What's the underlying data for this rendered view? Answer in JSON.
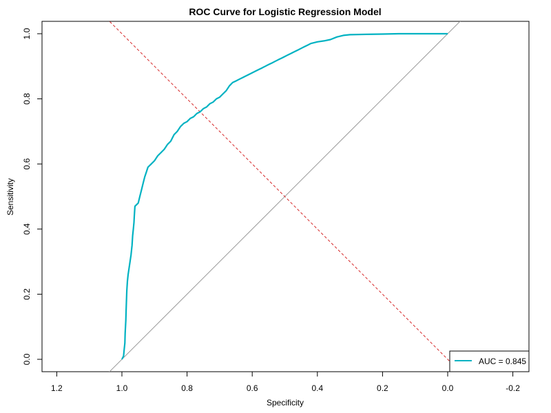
{
  "chart_data": {
    "type": "line",
    "title": "ROC Curve for Logistic Regression Model",
    "xlabel": "Specificity",
    "ylabel": "Sensitivity",
    "x_reversed": true,
    "xlim": [
      1.2,
      -0.2
    ],
    "ylim": [
      0.0,
      1.0
    ],
    "x_ticks": [
      1.2,
      1.0,
      0.8,
      0.6,
      0.4,
      0.2,
      0.0,
      -0.2
    ],
    "x_tick_labels": [
      "1.2",
      "1.0",
      "0.8",
      "0.6",
      "0.4",
      "0.2",
      "0.0",
      "-0.2"
    ],
    "y_ticks": [
      0.0,
      0.2,
      0.4,
      0.6,
      0.8,
      1.0
    ],
    "y_tick_labels": [
      "0.0",
      "0.2",
      "0.4",
      "0.6",
      "0.8",
      "1.0"
    ],
    "grid": false,
    "legend_position": "bottom-right",
    "series": [
      {
        "name": "AUC = 0.845",
        "color": "#00b2c2",
        "x": [
          1.0,
          0.995,
          0.993,
          0.991,
          0.99,
          0.988,
          0.987,
          0.986,
          0.985,
          0.983,
          0.981,
          0.978,
          0.975,
          0.972,
          0.969,
          0.967,
          0.965,
          0.963,
          0.962,
          0.96,
          0.955,
          0.95,
          0.945,
          0.94,
          0.935,
          0.93,
          0.925,
          0.92,
          0.91,
          0.9,
          0.89,
          0.88,
          0.87,
          0.86,
          0.85,
          0.84,
          0.83,
          0.82,
          0.81,
          0.8,
          0.79,
          0.78,
          0.77,
          0.76,
          0.75,
          0.74,
          0.73,
          0.72,
          0.71,
          0.7,
          0.69,
          0.68,
          0.67,
          0.66,
          0.65,
          0.64,
          0.63,
          0.62,
          0.61,
          0.6,
          0.59,
          0.58,
          0.57,
          0.56,
          0.55,
          0.54,
          0.53,
          0.52,
          0.51,
          0.5,
          0.49,
          0.48,
          0.47,
          0.46,
          0.45,
          0.44,
          0.43,
          0.42,
          0.4,
          0.38,
          0.36,
          0.34,
          0.32,
          0.3,
          0.25,
          0.2,
          0.15,
          0.1,
          0.05,
          0.0
        ],
        "y": [
          0.0,
          0.01,
          0.03,
          0.05,
          0.08,
          0.12,
          0.15,
          0.18,
          0.21,
          0.24,
          0.26,
          0.28,
          0.3,
          0.32,
          0.35,
          0.38,
          0.4,
          0.42,
          0.44,
          0.47,
          0.475,
          0.48,
          0.5,
          0.52,
          0.54,
          0.56,
          0.575,
          0.59,
          0.6,
          0.61,
          0.625,
          0.635,
          0.645,
          0.66,
          0.67,
          0.69,
          0.7,
          0.715,
          0.725,
          0.73,
          0.74,
          0.745,
          0.755,
          0.76,
          0.77,
          0.775,
          0.785,
          0.79,
          0.8,
          0.805,
          0.815,
          0.825,
          0.84,
          0.85,
          0.855,
          0.86,
          0.865,
          0.87,
          0.875,
          0.88,
          0.885,
          0.89,
          0.895,
          0.9,
          0.905,
          0.91,
          0.915,
          0.92,
          0.925,
          0.93,
          0.935,
          0.94,
          0.945,
          0.95,
          0.955,
          0.96,
          0.965,
          0.97,
          0.975,
          0.978,
          0.982,
          0.99,
          0.995,
          0.997,
          0.998,
          0.999,
          1.0,
          1.0,
          1.0,
          1.0
        ]
      }
    ],
    "reference_lines": [
      {
        "kind": "diagonal",
        "color": "#9a9a9a",
        "from": [
          1.0,
          0.0
        ],
        "to": [
          0.0,
          1.0
        ]
      },
      {
        "kind": "cutoff",
        "color": "#d62728",
        "dashed": true,
        "from": [
          1.0,
          1.0
        ],
        "to": [
          0.0,
          0.0
        ]
      }
    ],
    "legend": {
      "label": "AUC = 0.845",
      "color": "#00b2c2"
    }
  }
}
